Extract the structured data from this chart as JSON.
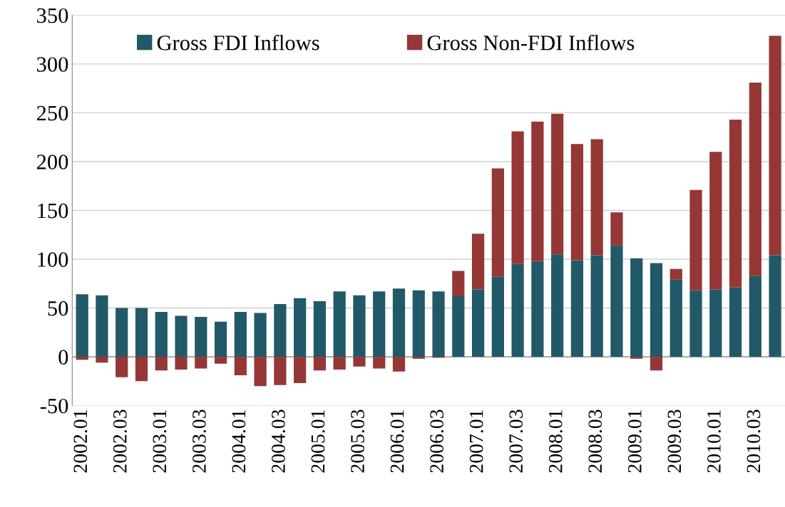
{
  "chart_data": {
    "type": "bar",
    "stacked": true,
    "categories": [
      "2002.01",
      null,
      "2002.03",
      null,
      "2003.01",
      null,
      "2003.03",
      null,
      "2004.01",
      null,
      "2004.03",
      null,
      "2005.01",
      null,
      "2005.03",
      null,
      "2006.01",
      null,
      "2006.03",
      null,
      "2007.01",
      null,
      "2007.03",
      null,
      "2008.01",
      null,
      "2008.03",
      null,
      "2009.01",
      null,
      "2009.03",
      null,
      "2010.01",
      null,
      "2010.03",
      null
    ],
    "series": [
      {
        "name": "Gross FDI Inflows",
        "color": "#215968",
        "values": [
          64,
          63,
          50,
          50,
          46,
          42,
          41,
          36,
          46,
          45,
          54,
          60,
          57,
          67,
          63,
          67,
          70,
          68,
          67,
          62,
          69,
          82,
          95,
          98,
          105,
          99,
          104,
          114,
          101,
          96,
          79,
          68,
          69,
          71,
          83,
          104
        ]
      },
      {
        "name": "Gross Non-FDI Inflows",
        "color": "#953735",
        "values": [
          -3,
          -6,
          -21,
          -25,
          -14,
          -13,
          -12,
          -7,
          -19,
          -30,
          -29,
          -27,
          -14,
          -13,
          -10,
          -12,
          -15,
          -2,
          -1,
          26,
          57,
          111,
          136,
          143,
          144,
          119,
          119,
          34,
          -2,
          -14,
          11,
          103,
          141,
          172,
          198,
          225
        ]
      }
    ],
    "ylim": [
      -50,
      350
    ],
    "yticks": [
      -50,
      0,
      50,
      100,
      150,
      200,
      250,
      300,
      350
    ],
    "grid": "y",
    "legend": "top"
  }
}
